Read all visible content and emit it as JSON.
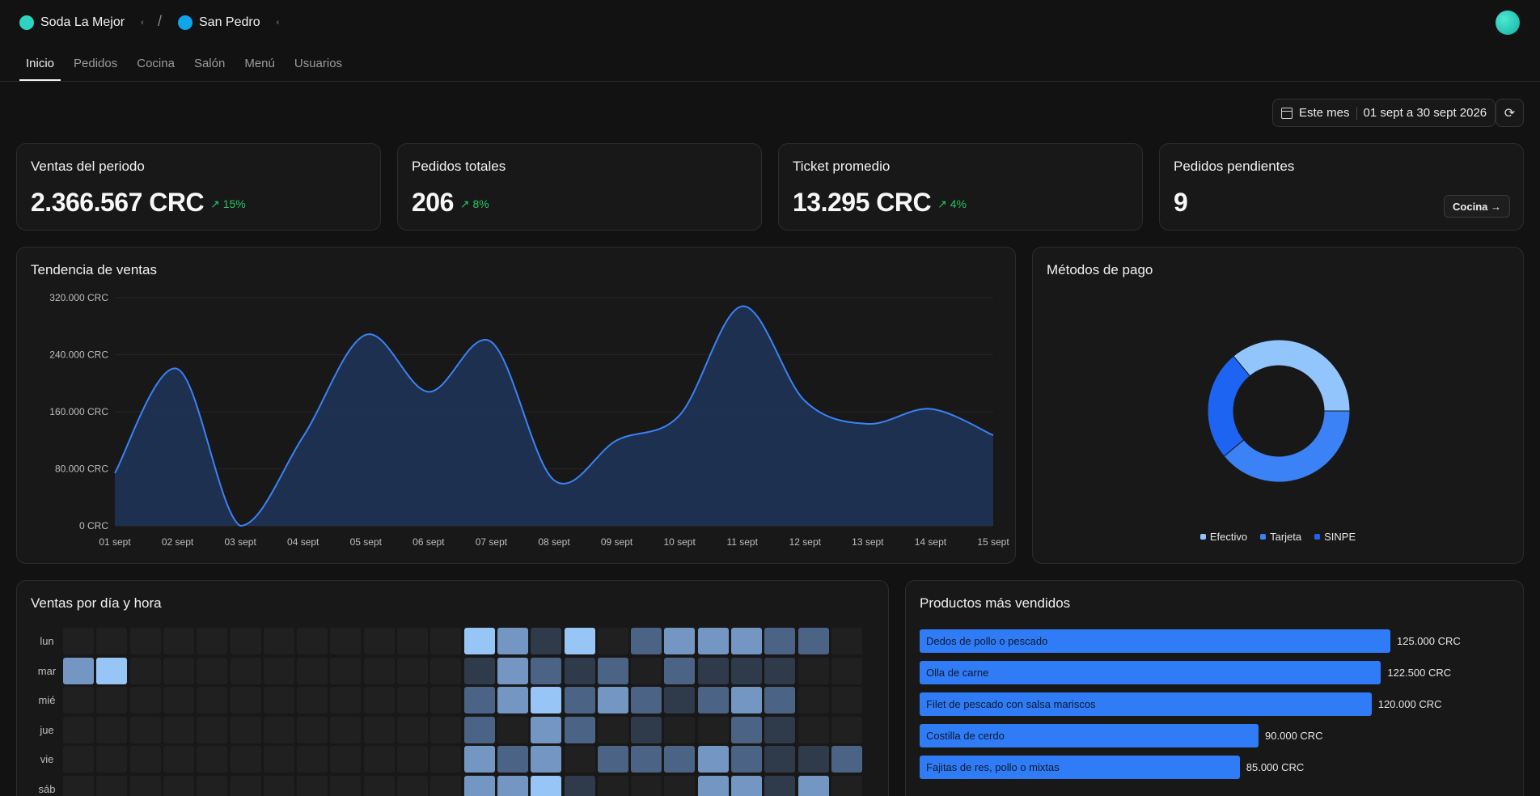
{
  "header": {
    "org": {
      "name": "Soda La Mejor",
      "color": "#2dd4bf"
    },
    "separator": "/",
    "branch": {
      "name": "San Pedro",
      "color": "#0ea5e9"
    },
    "avatar_color": "#2dd4bf"
  },
  "tabs": [
    {
      "label": "Inicio",
      "active": true
    },
    {
      "label": "Pedidos",
      "active": false
    },
    {
      "label": "Cocina",
      "active": false
    },
    {
      "label": "Salón",
      "active": false
    },
    {
      "label": "Menú",
      "active": false
    },
    {
      "label": "Usuarios",
      "active": false
    }
  ],
  "date_filter": {
    "preset": "Este mes",
    "range": "01 sept a 30 sept 2026"
  },
  "kpis": {
    "sales": {
      "title": "Ventas del periodo",
      "value": "2.366.567 CRC",
      "delta": "15%"
    },
    "orders": {
      "title": "Pedidos totales",
      "value": "206",
      "delta": "8%"
    },
    "ticket": {
      "title": "Ticket promedio",
      "value": "13.295 CRC",
      "delta": "4%"
    },
    "pending": {
      "title": "Pedidos pendientes",
      "value": "9",
      "button": "Cocina"
    }
  },
  "trend": {
    "title": "Tendencia de ventas"
  },
  "payments": {
    "title": "Métodos de pago"
  },
  "heatmap": {
    "title": "Ventas por día y hora",
    "days": [
      "lun",
      "mar",
      "mié",
      "jue",
      "vie",
      "sáb"
    ],
    "levels": [
      [
        0,
        0,
        0,
        0,
        0,
        0,
        0,
        0,
        0,
        0,
        0,
        0,
        4,
        3,
        1,
        4,
        0,
        2,
        3,
        3,
        3,
        2,
        2,
        0
      ],
      [
        3,
        4,
        0,
        0,
        0,
        0,
        0,
        0,
        0,
        0,
        0,
        0,
        1,
        3,
        2,
        1,
        2,
        0,
        2,
        1,
        1,
        1,
        0,
        0
      ],
      [
        0,
        0,
        0,
        0,
        0,
        0,
        0,
        0,
        0,
        0,
        0,
        0,
        2,
        3,
        4,
        2,
        3,
        2,
        1,
        2,
        3,
        2,
        0,
        0
      ],
      [
        0,
        0,
        0,
        0,
        0,
        0,
        0,
        0,
        0,
        0,
        0,
        0,
        2,
        0,
        3,
        2,
        0,
        1,
        0,
        0,
        2,
        1,
        0,
        0
      ],
      [
        0,
        0,
        0,
        0,
        0,
        0,
        0,
        0,
        0,
        0,
        0,
        0,
        3,
        2,
        3,
        0,
        2,
        2,
        2,
        3,
        2,
        1,
        1,
        2
      ],
      [
        0,
        0,
        0,
        0,
        0,
        0,
        0,
        0,
        0,
        0,
        0,
        0,
        3,
        3,
        4,
        1,
        0,
        0,
        0,
        3,
        3,
        1,
        3,
        0
      ]
    ]
  },
  "top_products": {
    "title": "Productos más vendidos"
  },
  "chart_data": [
    {
      "type": "area",
      "title": "Tendencia de ventas",
      "x": [
        "01 sept",
        "02 sept",
        "03 sept",
        "04 sept",
        "05 sept",
        "06 sept",
        "07 sept",
        "08 sept",
        "09 sept",
        "10 sept",
        "11 sept",
        "12 sept",
        "13 sept",
        "14 sept",
        "15 sept"
      ],
      "values": [
        74000,
        220000,
        0,
        125000,
        268000,
        188000,
        258000,
        64000,
        120000,
        155000,
        308000,
        175000,
        143000,
        164000,
        127000
      ],
      "ylim": [
        0,
        320000
      ],
      "yticks": [
        "0 CRC",
        "80.000 CRC",
        "160.000 CRC",
        "240.000 CRC",
        "320.000 CRC"
      ],
      "ytick_values": [
        0,
        80000,
        160000,
        240000,
        320000
      ],
      "color": "#3b82f6",
      "grid": true
    },
    {
      "type": "pie",
      "title": "Métodos de pago",
      "series": [
        {
          "name": "Efectivo",
          "value": 36,
          "color": "#93c5fd"
        },
        {
          "name": "Tarjeta",
          "value": 39,
          "color": "#3b82f6"
        },
        {
          "name": "SINPE",
          "value": 25,
          "color": "#1d64f2"
        }
      ],
      "legend": "bottom"
    },
    {
      "type": "bar",
      "title": "Productos más vendidos",
      "categories": [
        "Dedos de pollo o pescado",
        "Olla de carne",
        "Filet de pescado con salsa mariscos",
        "Costilla de cerdo",
        "Fajitas de res, pollo o mixtas"
      ],
      "values": [
        125000,
        122500,
        120000,
        90000,
        85000
      ],
      "value_labels": [
        "125.000 CRC",
        "122.500 CRC",
        "120.000 CRC",
        "90.000 CRC",
        "85.000 CRC"
      ],
      "color": "#2f7cf6"
    }
  ]
}
